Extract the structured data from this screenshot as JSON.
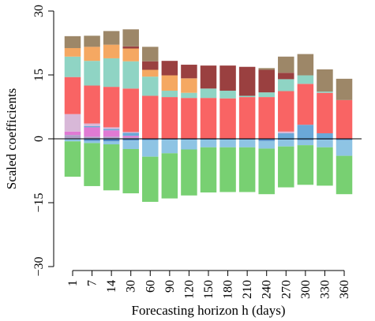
{
  "chart_data": {
    "type": "bar",
    "subtype": "stacked",
    "title": "",
    "xlabel": "Forecasting horizon h (days)",
    "ylabel": "Scaled coefficients",
    "ylim": [
      -30,
      30
    ],
    "yticks": [
      30,
      15,
      0,
      -15,
      -30
    ],
    "yticks_labels": [
      "30",
      "15",
      "0",
      "−15",
      "−30"
    ],
    "categories": [
      "1",
      "7",
      "14",
      "30",
      "60",
      "90",
      "120",
      "150",
      "180",
      "210",
      "240",
      "270",
      "300",
      "330",
      "360"
    ],
    "zero_line": true,
    "grid": false,
    "legend": "none",
    "positive_series": [
      {
        "color": "#b0a0c8",
        "values": [
          0.9,
          0.5,
          0.5,
          0.3,
          0,
          0,
          0,
          0,
          0,
          0,
          0,
          0,
          0,
          0,
          0
        ]
      },
      {
        "color": "#e07ad4",
        "values": [
          0.8,
          2.2,
          1.5,
          0.4,
          0,
          0,
          0,
          0,
          0,
          0,
          0,
          0,
          0,
          0,
          0
        ]
      },
      {
        "color": "#6aa8d8",
        "values": [
          0,
          0.3,
          0.3,
          0.7,
          0,
          0,
          0,
          0,
          0,
          0,
          0,
          1.3,
          3.3,
          1.3,
          0
        ]
      },
      {
        "color": "#d8b8d8",
        "values": [
          4.1,
          0.6,
          0.4,
          0.2,
          0,
          0,
          0,
          0,
          0,
          0,
          0,
          0.4,
          0,
          0,
          0
        ]
      },
      {
        "color": "#f96464",
        "values": [
          8.7,
          8.9,
          9.5,
          10.2,
          10.1,
          9.8,
          9.6,
          9.6,
          9.5,
          9.8,
          9.8,
          9.5,
          9.6,
          9.5,
          9.1
        ]
      },
      {
        "color": "#8fd4c4",
        "values": [
          4.8,
          5.8,
          6.7,
          6.4,
          4.5,
          1.5,
          1.2,
          2.2,
          1.8,
          0.3,
          1.1,
          2.8,
          2.0,
          0.3,
          0
        ]
      },
      {
        "color": "#f5a862",
        "values": [
          2.0,
          3.3,
          3.2,
          3.0,
          1.6,
          3.6,
          3.4,
          0,
          0,
          0,
          0,
          0,
          0,
          0,
          0
        ]
      },
      {
        "color": "#9a4040",
        "values": [
          0,
          0,
          0,
          0.5,
          2.0,
          3.4,
          3.2,
          5.4,
          5.9,
          6.8,
          5.3,
          1.5,
          0,
          0,
          0
        ]
      },
      {
        "color": "#9d8768",
        "values": [
          2.8,
          2.6,
          3.2,
          4.0,
          3.4,
          0,
          0,
          0,
          0,
          0,
          0.4,
          3.8,
          5.0,
          5.2,
          5.0
        ]
      }
    ],
    "negative_series": [
      {
        "color": "#4f88c6",
        "values": [
          -0.1,
          -0.5,
          -0.6,
          -0.4,
          -0.3,
          -0.2,
          -0.2,
          -0.2,
          -0.2,
          -0.2,
          -0.5,
          -0.2,
          -0.3,
          -0.2,
          -0.3
        ]
      },
      {
        "color": "#8ec4e4",
        "values": [
          -0.5,
          -0.5,
          -0.7,
          -2.0,
          -3.9,
          -3.2,
          -2.3,
          -1.8,
          -1.8,
          -1.8,
          -1.8,
          -1.6,
          -1.2,
          -1.8,
          -3.7
        ]
      },
      {
        "color": "#78d072",
        "values": [
          -8.3,
          -10.1,
          -10.8,
          -10.4,
          -10.6,
          -10.6,
          -10.8,
          -10.6,
          -10.5,
          -10.5,
          -10.7,
          -9.6,
          -9.3,
          -9.0,
          -9.0
        ]
      }
    ]
  }
}
